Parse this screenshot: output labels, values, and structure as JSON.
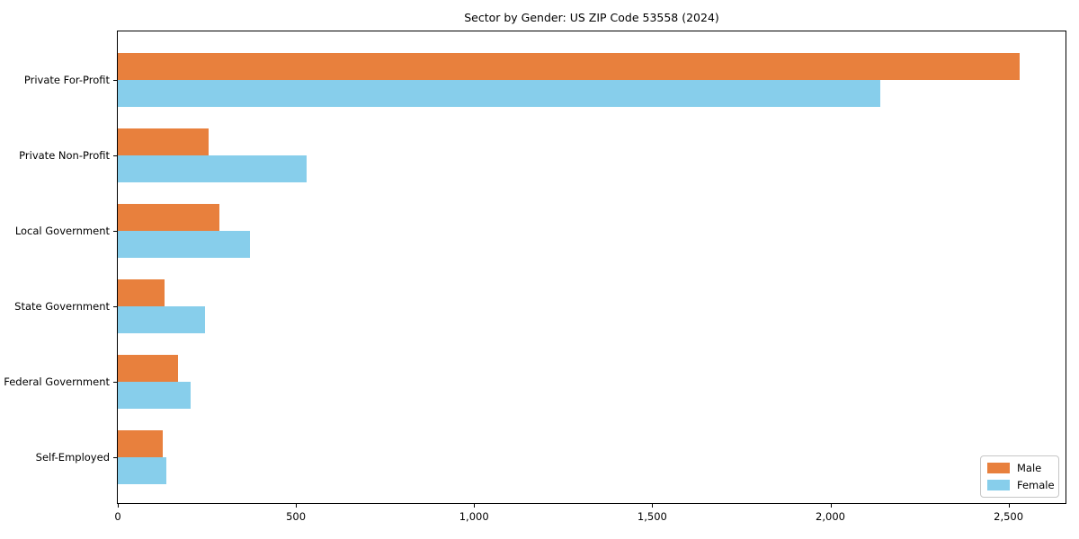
{
  "title": "Sector by Gender: US ZIP Code 53558 (2024)",
  "chart_data": {
    "type": "bar",
    "orientation": "horizontal",
    "title": "Sector by Gender: US ZIP Code 53558 (2024)",
    "categories": [
      "Private For-Profit",
      "Private Non-Profit",
      "Local Government",
      "State Government",
      "Federal Government",
      "Self-Employed"
    ],
    "series": [
      {
        "name": "Male",
        "color": "#E8803D",
        "values": [
          2530,
          255,
          285,
          130,
          170,
          125
        ]
      },
      {
        "name": "Female",
        "color": "#87CEEB",
        "values": [
          2140,
          530,
          370,
          245,
          205,
          135
        ]
      }
    ],
    "xlabel": "",
    "ylabel": "",
    "xlim": [
      0,
      2660
    ],
    "x_ticks": [
      {
        "value": 0,
        "label": "0"
      },
      {
        "value": 500,
        "label": "500"
      },
      {
        "value": 1000,
        "label": "1,000"
      },
      {
        "value": 1500,
        "label": "1,500"
      },
      {
        "value": 2000,
        "label": "2,000"
      },
      {
        "value": 2500,
        "label": "2,500"
      }
    ],
    "grid": false,
    "legend": {
      "position": "lower-right",
      "entries": [
        "Male",
        "Female"
      ]
    },
    "colors": {
      "male": "#E8803D",
      "female": "#87CEEB",
      "axis": "#000000",
      "legend_border": "#c6c6c6"
    }
  }
}
